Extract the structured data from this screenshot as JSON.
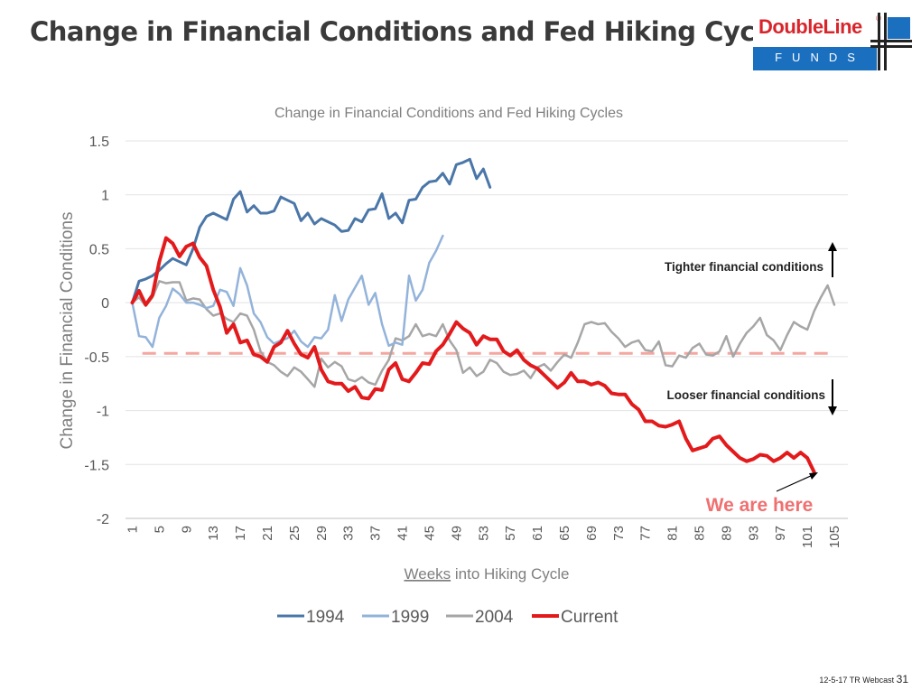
{
  "slide": {
    "title": "Change in Financial Conditions and Fed Hiking Cycles",
    "footer_text": "12-5-17 TR Webcast",
    "page_number": "31"
  },
  "logo": {
    "brand": "DoubleLine",
    "registered_mark": "®",
    "sub": "FUNDS"
  },
  "chart_data": {
    "type": "line",
    "title": "Change in Financial Conditions and Fed Hiking Cycles",
    "xlabel": "Weeks into Hiking Cycle",
    "ylabel": "Change in Financial Conditions",
    "ylim": [
      -2,
      1.5
    ],
    "xlim": [
      0,
      107
    ],
    "yticks": [
      "1.5",
      "1",
      "0.5",
      "0",
      "-0.5",
      "-1",
      "-1.5",
      "-2"
    ],
    "xticks": [
      "1",
      "5",
      "9",
      "13",
      "17",
      "21",
      "25",
      "29",
      "33",
      "37",
      "41",
      "45",
      "49",
      "53",
      "57",
      "61",
      "65",
      "69",
      "73",
      "77",
      "81",
      "85",
      "89",
      "93",
      "97",
      "101",
      "105"
    ],
    "grid": true,
    "legend_position": "bottom",
    "reference_line": {
      "y": -0.47,
      "style": "dashed",
      "color": "#f4a6a0"
    },
    "annotations": {
      "tighter": "Tighter financial conditions",
      "looser": "Looser financial conditions",
      "we_are_here": "We are here"
    },
    "colors": {
      "1994": "#4a76a8",
      "1999": "#93b3da",
      "2004": "#a6a6a6",
      "Current": "#e31a1c"
    },
    "series": [
      {
        "name": "1994",
        "x_start": 1,
        "values": [
          0,
          0.2,
          0.22,
          0.25,
          0.3,
          0.36,
          0.41,
          0.38,
          0.35,
          0.5,
          0.7,
          0.8,
          0.83,
          0.8,
          0.77,
          0.96,
          1.03,
          0.84,
          0.9,
          0.83,
          0.83,
          0.85,
          0.98,
          0.95,
          0.92,
          0.76,
          0.83,
          0.73,
          0.78,
          0.75,
          0.72,
          0.66,
          0.67,
          0.78,
          0.75,
          0.86,
          0.87,
          1.01,
          0.78,
          0.83,
          0.74,
          0.95,
          0.96,
          1.07,
          1.12,
          1.13,
          1.2,
          1.1,
          1.28,
          1.3,
          1.33,
          1.15,
          1.24,
          1.07
        ]
      },
      {
        "name": "1999",
        "x_start": 1,
        "values": [
          0,
          -0.31,
          -0.32,
          -0.41,
          -0.14,
          -0.03,
          0.13,
          0.08,
          0.0,
          0.0,
          -0.02,
          -0.05,
          -0.03,
          0.12,
          0.1,
          -0.03,
          0.32,
          0.16,
          -0.1,
          -0.18,
          -0.32,
          -0.38,
          -0.35,
          -0.33,
          -0.26,
          -0.36,
          -0.41,
          -0.32,
          -0.33,
          -0.25,
          0.07,
          -0.17,
          0.03,
          0.14,
          0.25,
          -0.02,
          0.09,
          -0.2,
          -0.4,
          -0.37,
          -0.39,
          0.25,
          0.02,
          0.12,
          0.37,
          0.48,
          0.62
        ]
      },
      {
        "name": "2004",
        "x_start": 1,
        "values": [
          0,
          0.05,
          -0.03,
          0.05,
          0.2,
          0.18,
          0.19,
          0.19,
          0.02,
          0.04,
          0.03,
          -0.06,
          -0.12,
          -0.1,
          -0.15,
          -0.18,
          -0.1,
          -0.12,
          -0.25,
          -0.45,
          -0.55,
          -0.58,
          -0.64,
          -0.68,
          -0.6,
          -0.64,
          -0.71,
          -0.78,
          -0.52,
          -0.6,
          -0.55,
          -0.59,
          -0.71,
          -0.73,
          -0.69,
          -0.74,
          -0.76,
          -0.63,
          -0.53,
          -0.33,
          -0.35,
          -0.31,
          -0.2,
          -0.31,
          -0.29,
          -0.31,
          -0.2,
          -0.35,
          -0.44,
          -0.65,
          -0.6,
          -0.68,
          -0.64,
          -0.53,
          -0.56,
          -0.64,
          -0.67,
          -0.66,
          -0.63,
          -0.7,
          -0.6,
          -0.57,
          -0.63,
          -0.55,
          -0.48,
          -0.51,
          -0.37,
          -0.2,
          -0.18,
          -0.2,
          -0.19,
          -0.27,
          -0.33,
          -0.41,
          -0.37,
          -0.35,
          -0.44,
          -0.45,
          -0.36,
          -0.58,
          -0.59,
          -0.49,
          -0.51,
          -0.42,
          -0.38,
          -0.48,
          -0.49,
          -0.45,
          -0.31,
          -0.5,
          -0.38,
          -0.28,
          -0.22,
          -0.14,
          -0.3,
          -0.35,
          -0.44,
          -0.3,
          -0.18,
          -0.22,
          -0.25,
          -0.08,
          0.05,
          0.16,
          -0.02
        ]
      },
      {
        "name": "Current",
        "x_start": 1,
        "values": [
          0,
          0.11,
          -0.02,
          0.07,
          0.38,
          0.6,
          0.55,
          0.43,
          0.52,
          0.55,
          0.42,
          0.34,
          0.12,
          -0.04,
          -0.28,
          -0.2,
          -0.37,
          -0.35,
          -0.48,
          -0.5,
          -0.55,
          -0.41,
          -0.37,
          -0.26,
          -0.38,
          -0.48,
          -0.51,
          -0.41,
          -0.62,
          -0.73,
          -0.75,
          -0.75,
          -0.82,
          -0.78,
          -0.88,
          -0.89,
          -0.8,
          -0.81,
          -0.62,
          -0.56,
          -0.71,
          -0.73,
          -0.65,
          -0.56,
          -0.57,
          -0.45,
          -0.39,
          -0.29,
          -0.18,
          -0.24,
          -0.28,
          -0.39,
          -0.31,
          -0.34,
          -0.34,
          -0.45,
          -0.49,
          -0.44,
          -0.53,
          -0.58,
          -0.61,
          -0.67,
          -0.73,
          -0.79,
          -0.74,
          -0.65,
          -0.73,
          -0.73,
          -0.76,
          -0.74,
          -0.77,
          -0.84,
          -0.85,
          -0.85,
          -0.94,
          -0.99,
          -1.1,
          -1.1,
          -1.14,
          -1.15,
          -1.13,
          -1.1,
          -1.26,
          -1.37,
          -1.35,
          -1.33,
          -1.26,
          -1.24,
          -1.32,
          -1.38,
          -1.44,
          -1.47,
          -1.45,
          -1.41,
          -1.42,
          -1.47,
          -1.44,
          -1.39,
          -1.44,
          -1.39,
          -1.44,
          -1.57
        ]
      }
    ]
  }
}
